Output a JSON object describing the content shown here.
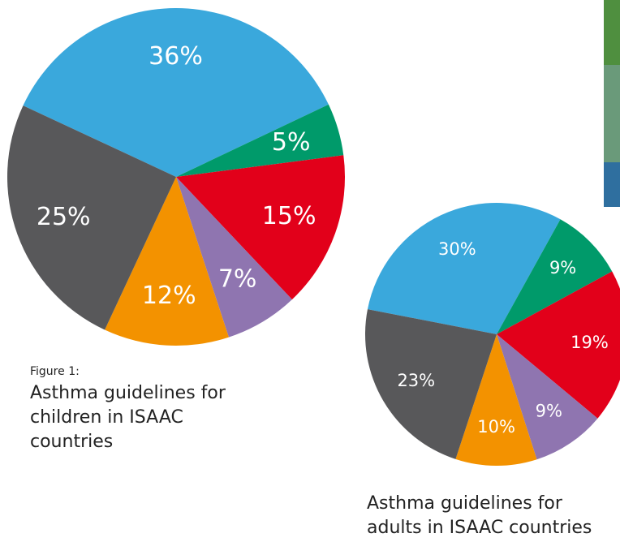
{
  "chart_data": [
    {
      "type": "pie",
      "figure_label": "Figure 1:",
      "title": "Asthma guidelines for children in ISAAC countries",
      "categories": [
        null,
        null,
        null,
        null,
        null,
        null
      ],
      "values": [
        36,
        5,
        15,
        7,
        12,
        25
      ],
      "value_labels": [
        "36%",
        "5%",
        "15%",
        "7%",
        "12%",
        "25%"
      ],
      "colors": [
        "#3aa8dc",
        "#009a6a",
        "#e2001a",
        "#8f75b0",
        "#f39200",
        "#58585a"
      ]
    },
    {
      "type": "pie",
      "title": "Asthma guidelines for adults in ISAAC countries",
      "categories": [
        null,
        null,
        null,
        null,
        null,
        null
      ],
      "values": [
        30,
        9,
        19,
        9,
        10,
        23
      ],
      "value_labels": [
        "30%",
        "9%",
        "19%",
        "9%",
        "10%",
        "23%"
      ],
      "colors": [
        "#3aa8dc",
        "#009a6a",
        "#e2001a",
        "#8f75b0",
        "#f39200",
        "#58585a"
      ]
    }
  ]
}
